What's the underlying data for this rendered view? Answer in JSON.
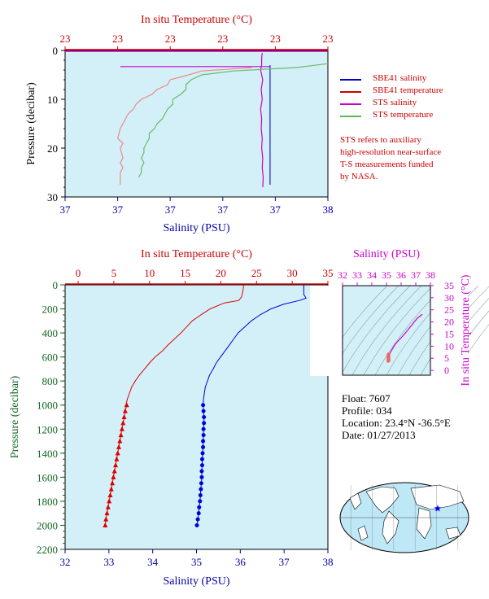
{
  "chart_data": [
    {
      "type": "line",
      "panel": "top",
      "top_axis_label": "In situ Temperature (°C)",
      "top_ticks": [
        "23",
        "23",
        "23",
        "23",
        "23",
        "23"
      ],
      "bottom_axis_label": "Salinity (PSU)",
      "bottom_ticks": [
        "37",
        "37",
        "37",
        "37",
        "37",
        "38"
      ],
      "ylabel": "Pressure (decibar)",
      "y_ticks": [
        "0",
        "10",
        "20",
        "30"
      ],
      "ylim": [
        30,
        0
      ],
      "temp_lim": [
        0,
        5
      ],
      "sal_lim": [
        0,
        5
      ],
      "legend": [
        {
          "label": "SBE41 salinity",
          "color": "#0000cc"
        },
        {
          "label": "SBE41 temperature",
          "color": "#cc0000"
        },
        {
          "label": "STS salinity",
          "color": "#cc00cc"
        },
        {
          "label": "STS temperature",
          "color": "#55bb55"
        }
      ],
      "note": [
        "STS refers to auxiliary",
        "high-resolution near-surface",
        "T-S measurements funded",
        "by NASA."
      ],
      "series": [
        {
          "name": "SBE41 salinity",
          "color": "#2222cc",
          "x": [
            3.9,
            3.9,
            3.9,
            3.9,
            3.9,
            3.9
          ],
          "y": [
            3,
            5,
            10,
            15,
            20,
            27.5
          ]
        },
        {
          "name": "STS salinity",
          "color": "#cc00cc",
          "x": [
            3.75,
            3.74,
            3.74,
            3.72,
            3.76,
            3.73,
            3.75,
            3.72,
            3.74,
            3.73,
            3.75,
            3.74,
            3.76,
            3.75,
            3.77,
            3.76
          ],
          "y": [
            0.5,
            1.5,
            3,
            4,
            6,
            8,
            10,
            12,
            14,
            16,
            18,
            20,
            22,
            24,
            26,
            28
          ]
        },
        {
          "name": "STS temperature",
          "color": "#66bb66",
          "x": [
            5.0,
            4.4,
            3.2,
            2.6,
            2.4,
            2.3,
            2.3,
            2.2,
            2.05,
            2.05,
            1.95,
            1.9,
            1.85,
            1.75,
            1.7,
            1.6,
            1.6,
            1.55,
            1.5,
            1.5,
            1.45,
            1.5,
            1.45,
            1.45,
            1.4
          ],
          "y": [
            2.7,
            3.5,
            4.2,
            5,
            6,
            7,
            8,
            9,
            10,
            11,
            12,
            13,
            14,
            15,
            16,
            17,
            18,
            19,
            20,
            21,
            22,
            23,
            24,
            25,
            26
          ]
        },
        {
          "name": "SBE41 temperature",
          "color": "#ee8888",
          "x": [
            3.55,
            2.6,
            2.35,
            2.0,
            1.95,
            1.75,
            1.65,
            1.45,
            1.35,
            1.3,
            1.2,
            1.15,
            1.1,
            1.05,
            1.0,
            1.1,
            1.05,
            1.1,
            1.05,
            1.1,
            1.05,
            1.05
          ],
          "y": [
            3.5,
            4.2,
            5,
            6,
            7,
            8,
            9,
            10,
            11,
            12,
            13,
            14,
            15,
            16,
            18,
            19,
            20,
            22,
            23,
            24,
            25,
            27.5
          ]
        },
        {
          "name": "surface line",
          "color": "#cc00cc",
          "x": [
            1.05,
            3.9
          ],
          "y": [
            3.3,
            3.3
          ]
        }
      ]
    },
    {
      "type": "line",
      "panel": "main",
      "top_axis_label": "In situ Temperature (°C)",
      "top_ticks": [
        "0",
        "5",
        "10",
        "15",
        "20",
        "25",
        "30",
        "35"
      ],
      "bottom_axis_label": "Salinity (PSU)",
      "bottom_ticks": [
        "32",
        "33",
        "34",
        "35",
        "36",
        "37",
        "38"
      ],
      "ylabel": "Pressure (decibar)",
      "y_ticks": [
        "0",
        "200",
        "400",
        "600",
        "800",
        "1000",
        "1200",
        "1400",
        "1600",
        "1800",
        "2000",
        "2200"
      ],
      "ylim": [
        2200,
        0
      ],
      "temp_lim": [
        0,
        35
      ],
      "sal_lim": [
        32,
        38
      ],
      "temperature": {
        "p": [
          0,
          50,
          100,
          130,
          150,
          200,
          250,
          300,
          350,
          400,
          450,
          500,
          550,
          600,
          650,
          700,
          750,
          800,
          850,
          900,
          950,
          1000
        ],
        "t": [
          23.2,
          23.1,
          22.9,
          22.5,
          20.5,
          18.5,
          17.2,
          16.0,
          15.2,
          14.4,
          13.5,
          12.6,
          11.8,
          10.8,
          10.0,
          9.3,
          8.6,
          8.0,
          7.5,
          7.2,
          6.9,
          6.7
        ],
        "p_sampled": [
          1000,
          1050,
          1100,
          1150,
          1200,
          1250,
          1300,
          1350,
          1400,
          1450,
          1500,
          1550,
          1600,
          1650,
          1700,
          1750,
          1800,
          1850,
          1900,
          1950,
          2000
        ],
        "t_sampled": [
          6.8,
          6.6,
          6.45,
          6.3,
          6.15,
          6.0,
          5.85,
          5.7,
          5.55,
          5.4,
          5.25,
          5.1,
          4.95,
          4.8,
          4.65,
          4.5,
          4.35,
          4.2,
          4.05,
          3.9,
          3.8
        ]
      },
      "salinity": {
        "p": [
          0,
          80,
          110,
          130,
          160,
          200,
          250,
          300,
          350,
          400,
          450,
          500,
          550,
          600,
          650,
          700,
          750,
          800,
          850,
          900,
          950,
          1000
        ],
        "s": [
          37.45,
          37.45,
          37.5,
          37.35,
          37.0,
          36.7,
          36.45,
          36.25,
          36.1,
          35.95,
          35.85,
          35.75,
          35.65,
          35.55,
          35.45,
          35.38,
          35.3,
          35.25,
          35.2,
          35.18,
          35.16,
          35.15
        ],
        "p_sampled": [
          1000,
          1050,
          1100,
          1150,
          1200,
          1250,
          1300,
          1350,
          1400,
          1450,
          1500,
          1550,
          1600,
          1650,
          1700,
          1750,
          1800,
          1850,
          1900,
          1950,
          2000
        ],
        "s_sampled": [
          35.15,
          35.16,
          35.17,
          35.17,
          35.16,
          35.16,
          35.15,
          35.15,
          35.14,
          35.13,
          35.13,
          35.12,
          35.12,
          35.11,
          35.1,
          35.09,
          35.08,
          35.06,
          35.05,
          35.03,
          35.01
        ]
      },
      "colors": {
        "temperature": "#dd0000",
        "salinity": "#0000dd"
      }
    },
    {
      "type": "scatter",
      "panel": "ts-diagram",
      "top_axis_label": "Salinity (PSU)",
      "top_ticks": [
        "32",
        "33",
        "34",
        "35",
        "36",
        "37",
        "38"
      ],
      "right_axis_label": "In situ Temperature (°C)",
      "right_ticks": [
        "0",
        "5",
        "10",
        "15",
        "20",
        "25",
        "30",
        "35"
      ],
      "sal_lim": [
        32,
        38
      ],
      "temp_lim": [
        -2,
        35
      ],
      "curve_s": [
        35.15,
        35.16,
        35.25,
        35.4,
        35.6,
        35.9,
        36.2,
        36.5,
        36.8,
        37.1,
        37.45
      ],
      "curve_t": [
        3.8,
        5.5,
        7.2,
        8.8,
        10.8,
        12.8,
        14.8,
        17.0,
        19.3,
        21.5,
        23.2
      ],
      "colors": {
        "curve": "#cc00cc",
        "dots": "#ee6666"
      }
    }
  ],
  "float_info": {
    "float": "Float:  7607",
    "profile": "Profile:  034",
    "location": "Location:  23.4°N  -36.5°E",
    "date": "Date:  01/27/2013"
  },
  "map": {
    "marker_lat": 23.4,
    "marker_lon": -36.5,
    "marker_color": "#0000ff"
  }
}
